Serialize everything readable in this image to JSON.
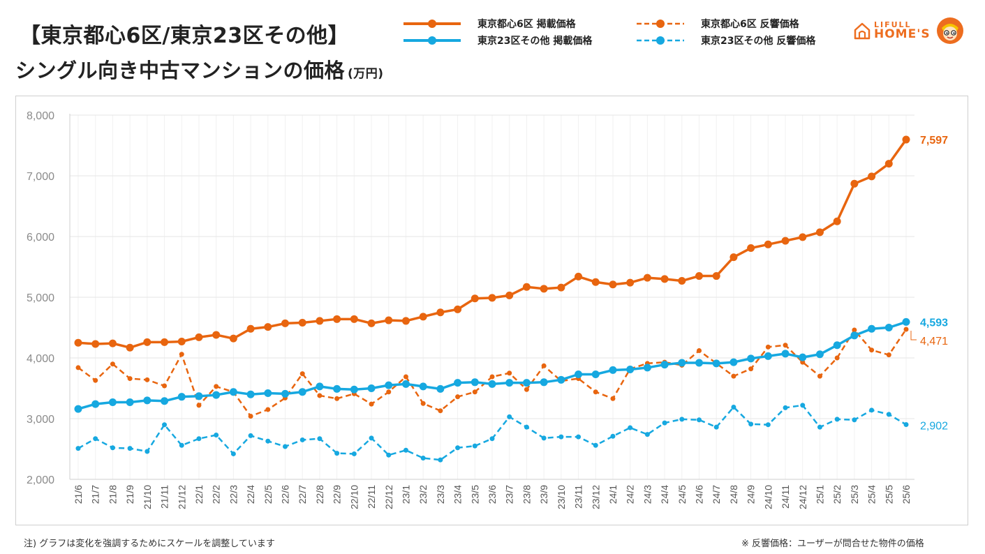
{
  "header": {
    "title_line1": "【東京都心6区/東京23区その他】",
    "title_line2": "シングル向き中古マンションの価格",
    "title_unit": "(万円)"
  },
  "legend": {
    "items": [
      {
        "label": "東京都心6区 掲載価格",
        "color": "#e8650f",
        "style": "solid"
      },
      {
        "label": "東京23区その他 掲載価格",
        "color": "#16a8e0",
        "style": "solid"
      },
      {
        "label": "東京都心6区 反響価格",
        "color": "#e8650f",
        "style": "dashed"
      },
      {
        "label": "東京23区その他 反響価格",
        "color": "#16a8e0",
        "style": "dashed"
      }
    ]
  },
  "logo": {
    "small_text": "LIFULL",
    "big_text": "HOME'S",
    "icon": "house-icon",
    "mascot_icon": "mascot-face-icon",
    "color": "#ed6d1f"
  },
  "notes": {
    "left": "注) グラフは変化を強調するためにスケールを調整しています",
    "right": "※ 反響価格：ユーザーが問合せた物件の価格"
  },
  "chart_data": {
    "type": "line",
    "title": "シングル向き中古マンションの価格",
    "ylabel": "",
    "xlabel": "",
    "ylim": [
      2000,
      8000
    ],
    "yticks": [
      "2,000",
      "3,000",
      "4,000",
      "5,000",
      "6,000",
      "7,000",
      "8,000"
    ],
    "grid": true,
    "legend_position": "top",
    "categories": [
      "21/6",
      "21/7",
      "21/8",
      "21/9",
      "21/10",
      "21/11",
      "21/12",
      "22/1",
      "22/2",
      "22/3",
      "22/4",
      "22/5",
      "22/6",
      "22/7",
      "22/8",
      "22/9",
      "22/10",
      "22/11",
      "22/12",
      "23/1",
      "23/2",
      "23/3",
      "23/4",
      "23/5",
      "23/6",
      "23/7",
      "23/8",
      "23/9",
      "23/10",
      "23/11",
      "23/12",
      "24/1",
      "24/2",
      "24/3",
      "24/4",
      "24/5",
      "24/6",
      "24/7",
      "24/8",
      "24/9",
      "24/10",
      "24/11",
      "24/12",
      "25/1",
      "25/2",
      "25/3",
      "25/4",
      "25/5",
      "25/6"
    ],
    "series": [
      {
        "name": "東京都心6区 掲載価格",
        "color": "#e8650f",
        "style": "solid",
        "end_label": "7,597",
        "values": [
          4250,
          4230,
          4240,
          4170,
          4260,
          4260,
          4270,
          4340,
          4380,
          4320,
          4480,
          4510,
          4570,
          4580,
          4610,
          4640,
          4640,
          4570,
          4620,
          4610,
          4680,
          4750,
          4800,
          4980,
          4990,
          5030,
          5170,
          5140,
          5160,
          5340,
          5250,
          5210,
          5240,
          5320,
          5300,
          5270,
          5350,
          5350,
          5660,
          5810,
          5870,
          5930,
          5990,
          6070,
          6250,
          6870,
          6990,
          7200,
          7597
        ]
      },
      {
        "name": "東京都心6区 反響価格",
        "color": "#e8650f",
        "style": "dashed",
        "end_label": "4,471",
        "values": [
          3840,
          3630,
          3900,
          3660,
          3640,
          3540,
          4060,
          3220,
          3530,
          3440,
          3040,
          3150,
          3340,
          3740,
          3380,
          3330,
          3410,
          3240,
          3440,
          3690,
          3250,
          3130,
          3360,
          3440,
          3690,
          3750,
          3480,
          3870,
          3620,
          3660,
          3440,
          3330,
          3820,
          3910,
          3930,
          3880,
          4120,
          3910,
          3700,
          3820,
          4180,
          4210,
          3930,
          3700,
          4000,
          4460,
          4130,
          4050,
          4471
        ]
      },
      {
        "name": "東京23区その他 掲載価格",
        "color": "#16a8e0",
        "style": "solid",
        "end_label": "4,593",
        "values": [
          3160,
          3240,
          3270,
          3270,
          3300,
          3290,
          3360,
          3370,
          3390,
          3440,
          3400,
          3420,
          3410,
          3440,
          3530,
          3490,
          3480,
          3500,
          3550,
          3570,
          3530,
          3490,
          3590,
          3600,
          3570,
          3590,
          3590,
          3600,
          3640,
          3730,
          3730,
          3800,
          3810,
          3840,
          3890,
          3920,
          3920,
          3910,
          3930,
          3990,
          4030,
          4070,
          4010,
          4060,
          4210,
          4370,
          4480,
          4500,
          4593
        ]
      },
      {
        "name": "東京23区その他 反響価格",
        "color": "#16a8e0",
        "style": "dashed",
        "end_label": "2,902",
        "values": [
          2510,
          2670,
          2520,
          2510,
          2460,
          2900,
          2560,
          2670,
          2730,
          2420,
          2720,
          2630,
          2540,
          2650,
          2670,
          2430,
          2420,
          2680,
          2400,
          2480,
          2350,
          2320,
          2520,
          2550,
          2670,
          3030,
          2860,
          2680,
          2700,
          2700,
          2560,
          2710,
          2850,
          2740,
          2930,
          2990,
          2980,
          2860,
          3190,
          2910,
          2900,
          3180,
          3220,
          2860,
          2990,
          2980,
          3140,
          3070,
          2902
        ]
      }
    ]
  }
}
